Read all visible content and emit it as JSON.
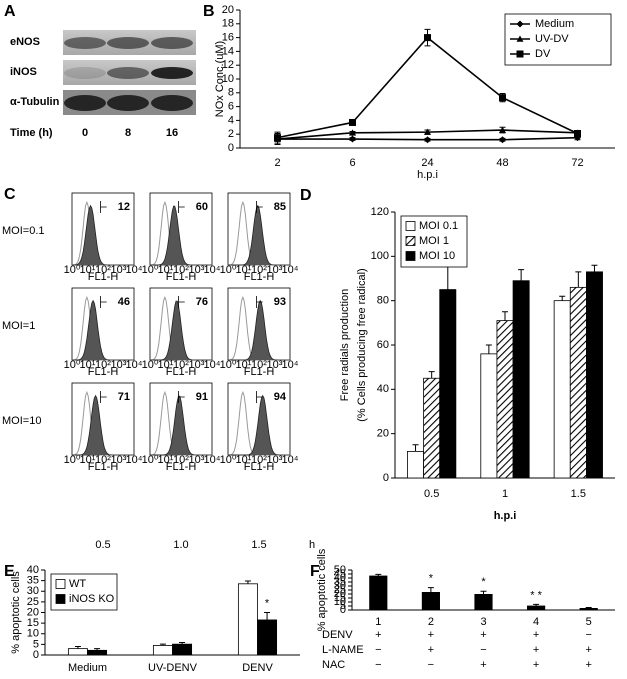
{
  "blot": {
    "panel": "A",
    "rows": [
      "eNOS",
      "iNOS",
      "α-Tubulin"
    ],
    "time_label": "Time (h)",
    "times": [
      "0",
      "8",
      "16"
    ]
  },
  "flow": {
    "panel": "C",
    "rows": [
      "MOI=0.1",
      "MOI=1",
      "MOI=10"
    ],
    "columns": [
      "0.5",
      "1.0",
      "1.5"
    ],
    "unit": "h",
    "values": [
      [
        12,
        60,
        85
      ],
      [
        46,
        76,
        93
      ],
      [
        71,
        91,
        94
      ]
    ],
    "axis_label": "FL1-H",
    "axis_ticks": [
      "10⁰",
      "10¹",
      "10²",
      "10³",
      "10⁴"
    ]
  },
  "chart_data": [
    {
      "type": "line",
      "panel": "B",
      "categories": [
        "2",
        "6",
        "24",
        "48",
        "72"
      ],
      "xlabel": "h.p.i",
      "ylabel": "NOx Conc.(uM)",
      "ylim": [
        0,
        20
      ],
      "yticks": [
        0,
        2,
        4,
        6,
        8,
        10,
        12,
        14,
        16,
        18,
        20
      ],
      "legend": "upper right",
      "series": [
        {
          "name": "Medium",
          "color": "#000000",
          "marker": "diamond",
          "values": [
            1.3,
            1.3,
            1.2,
            1.2,
            1.5
          ],
          "errors": [
            0.3,
            0.2,
            0.2,
            0.2,
            0.3
          ]
        },
        {
          "name": "UV-DV",
          "color": "#000000",
          "marker": "triangle",
          "values": [
            1.3,
            2.2,
            2.3,
            2.6,
            2.2
          ],
          "errors": [
            0.8,
            0.2,
            0.3,
            0.4,
            0.2
          ]
        },
        {
          "name": "DV",
          "color": "#000000",
          "marker": "square",
          "values": [
            1.5,
            3.7,
            16,
            7.3,
            2.1
          ],
          "errors": [
            0.8,
            0.2,
            1.2,
            0.6,
            0.3
          ]
        }
      ]
    },
    {
      "type": "bar",
      "panel": "D",
      "categories": [
        "0.5",
        "1",
        "1.5"
      ],
      "xlabel": "h.p.i",
      "ylabel": [
        "Free radials production",
        "(% Cells producing free radical)"
      ],
      "ylim": [
        0,
        120
      ],
      "yticks": [
        0,
        20,
        40,
        60,
        80,
        100,
        120
      ],
      "legend": "upper left",
      "series": [
        {
          "name": "MOI 0.1",
          "color": "#ffffff",
          "values": [
            12,
            56,
            80
          ],
          "errors": [
            3,
            4,
            2
          ]
        },
        {
          "name": "MOI 1",
          "color": "#ffffff",
          "pattern": "hatch",
          "values": [
            45,
            71,
            86
          ],
          "errors": [
            3,
            4,
            7
          ]
        },
        {
          "name": "MOI 10",
          "color": "#000000",
          "values": [
            85,
            89,
            93
          ],
          "errors": [
            11,
            5,
            3
          ]
        }
      ]
    },
    {
      "type": "bar",
      "panel": "E",
      "categories": [
        "Medium",
        "UV-DENV",
        "DENV"
      ],
      "ylabel": "% apoptotic cells",
      "ylim": [
        0,
        40
      ],
      "yticks": [
        0,
        5,
        10,
        15,
        20,
        25,
        30,
        35,
        40
      ],
      "legend": "upper left",
      "series": [
        {
          "name": "WT",
          "color": "#ffffff",
          "values": [
            3,
            4.5,
            33.5
          ],
          "errors": [
            1,
            0.6,
            1.3
          ]
        },
        {
          "name": "iNOS KO",
          "color": "#000000",
          "values": [
            2.2,
            5.1,
            16.5
          ],
          "errors": [
            0.8,
            0.8,
            3.5
          ],
          "significance": [
            null,
            null,
            "*"
          ]
        }
      ]
    },
    {
      "type": "bar",
      "panel": "F",
      "categories": [
        "1",
        "2",
        "3",
        "4",
        "5"
      ],
      "ylabel": "% apoptotic cells",
      "ylim": [
        0,
        50
      ],
      "yticks": [
        0,
        5,
        10,
        15,
        20,
        25,
        30,
        35,
        40,
        45,
        50
      ],
      "series": [
        {
          "color": "#000000",
          "values": [
            42.5,
            22,
            19.5,
            5,
            2
          ],
          "errors": [
            2,
            6,
            4,
            2,
            1.2
          ],
          "significance": [
            null,
            "*",
            "*",
            "* *",
            null
          ]
        }
      ],
      "treatments": [
        {
          "name": "DENV",
          "signs": [
            "+",
            "+",
            "+",
            "+",
            "−"
          ]
        },
        {
          "name": "L-NAME",
          "signs": [
            "−",
            "+",
            "−",
            "+",
            "+"
          ]
        },
        {
          "name": "NAC",
          "signs": [
            "−",
            "−",
            "+",
            "+",
            "+"
          ]
        }
      ]
    }
  ]
}
